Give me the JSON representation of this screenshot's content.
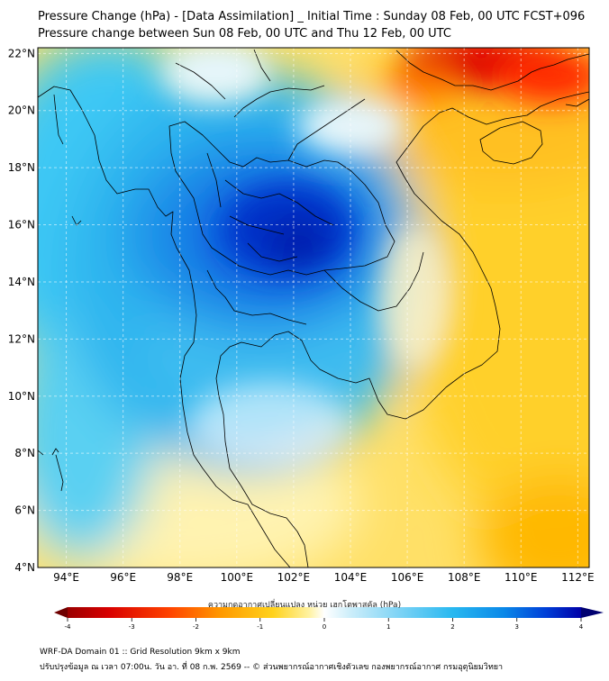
{
  "header": {
    "title_line1": "Pressure Change (hPa) - [Data Assimilation] _ Initial Time : Sunday 08 Feb, 00 UTC FCST+096",
    "title_line2": "Pressure change between Sun 08 Feb, 00 UTC and Thu 12 Feb, 00 UTC"
  },
  "map": {
    "lon_ticks": [
      "94°E",
      "96°E",
      "98°E",
      "100°E",
      "102°E",
      "104°E",
      "106°E",
      "108°E",
      "110°E",
      "112°E"
    ],
    "lat_ticks": [
      "22°N",
      "20°N",
      "18°N",
      "16°N",
      "14°N",
      "12°N",
      "10°N",
      "8°N",
      "6°N",
      "4°N"
    ],
    "lon_values": [
      94,
      96,
      98,
      100,
      102,
      104,
      106,
      108,
      110,
      112
    ],
    "lat_values": [
      22,
      20,
      18,
      16,
      14,
      12,
      10,
      8,
      6,
      4
    ],
    "lon_range": [
      93.0,
      112.4
    ],
    "lat_range": [
      4.0,
      22.2
    ],
    "gridlines": true
  },
  "colorbar": {
    "title": "ความกดอากาศเปลี่ยนแปลง หน่วย เฮกโตพาสคัล (hPa)",
    "tick_labels": [
      "-4",
      "-3",
      "-2",
      "-1",
      "0",
      "1",
      "2",
      "3",
      "4"
    ],
    "tick_values": [
      -4,
      -3,
      -2,
      -1,
      0,
      1,
      2,
      3,
      4
    ],
    "range": [
      -4,
      4
    ],
    "extend": "both",
    "low_color": "#6e0000",
    "high_color": "#000070"
  },
  "footer": {
    "line1": "WRF-DA Domain 01 :: Grid Resolution 9km x 9km",
    "line2": "ปรับปรุงข้อมูล ณ เวลา 07:00น. วัน อา. ที่ 08 ก.พ. 2569 -- © ส่วนพยากรณ์อากาศเชิงตัวเลข กองพยากรณ์อากาศ กรมอุตุนิยมวิทยา"
  }
}
